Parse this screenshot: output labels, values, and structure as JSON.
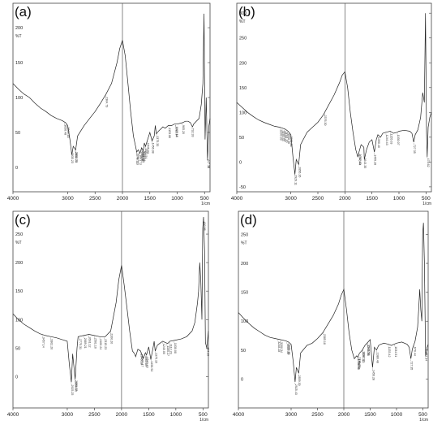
{
  "chart_data": [
    {
      "type": "line",
      "panel_label": "(a)",
      "ylabel": "%T",
      "xlabel": "1/cm",
      "xlim": [
        4000,
        400
      ],
      "ylim": [
        -35,
        235
      ],
      "xticks": [
        4000,
        3000,
        2500,
        2000,
        1500,
        1000,
        500
      ],
      "yticks": [
        0,
        50,
        100,
        150,
        200
      ],
      "series": [
        {
          "x": [
            4000,
            3900,
            3800,
            3700,
            3600,
            3500,
            3400,
            3300,
            3200,
            3100,
            3040,
            3000,
            2960,
            2925,
            2900,
            2855,
            2820,
            2700,
            2600,
            2500,
            2400,
            2300,
            2200,
            2100,
            2050,
            2000,
            1950,
            1900,
            1850,
            1800,
            1760,
            1740,
            1710,
            1680,
            1650,
            1620,
            1600,
            1580,
            1540,
            1500,
            1460,
            1420,
            1400,
            1380,
            1340,
            1300,
            1260,
            1220,
            1160,
            1100,
            1050,
            1000,
            900,
            850,
            800,
            760,
            720,
            700,
            650,
            600,
            560,
            530,
            510,
            490,
            470,
            446,
            420,
            400
          ],
          "y": [
            120,
            112,
            105,
            100,
            92,
            85,
            80,
            74,
            70,
            67,
            64,
            60,
            40,
            18,
            30,
            25,
            45,
            60,
            70,
            80,
            92,
            105,
            120,
            150,
            170,
            182,
            160,
            120,
            80,
            45,
            30,
            22,
            25,
            20,
            28,
            24,
            35,
            30,
            40,
            50,
            38,
            45,
            60,
            48,
            52,
            55,
            58,
            56,
            60,
            60,
            62,
            62,
            64,
            66,
            66,
            64,
            58,
            62,
            66,
            70,
            90,
            120,
            220,
            40,
            100,
            10,
            60,
            70
          ]
        }
      ],
      "peak_labels": [
        "3056.48",
        "3009.48",
        "2935.23",
        "2862.76",
        "2856.23",
        "2304.73",
        "1744.11",
        "1737.13",
        "1691.72",
        "1658.67",
        "1646.28",
        "1633.23",
        "1613.44",
        "1583.54",
        "1545.93",
        "1456.38",
        "1375.33",
        "1153.86",
        "1025.15",
        "1032.94",
        "905.20",
        "732.33",
        "447.35"
      ]
    },
    {
      "type": "line",
      "panel_label": "(b)",
      "ylabel": "%T",
      "xlabel": "1/cm",
      "xlim": [
        4000,
        400
      ],
      "ylim": [
        -60,
        320
      ],
      "xticks": [
        4000,
        3000,
        2500,
        2000,
        1500,
        1000,
        500
      ],
      "yticks": [
        -50,
        0,
        50,
        100,
        150,
        200,
        250,
        300
      ],
      "series": [
        {
          "x": [
            4000,
            3900,
            3800,
            3700,
            3600,
            3500,
            3400,
            3300,
            3200,
            3100,
            3050,
            3000,
            2960,
            2925,
            2900,
            2855,
            2820,
            2700,
            2600,
            2500,
            2400,
            2300,
            2200,
            2100,
            2050,
            2000,
            1950,
            1900,
            1850,
            1800,
            1760,
            1740,
            1700,
            1650,
            1640,
            1600,
            1550,
            1500,
            1455,
            1420,
            1390,
            1340,
            1300,
            1240,
            1160,
            1100,
            1030,
            1000,
            900,
            800,
            760,
            727,
            700,
            650,
            600,
            560,
            530,
            510,
            490,
            478,
            460,
            430,
            400
          ],
          "y": [
            120,
            110,
            100,
            92,
            85,
            80,
            76,
            72,
            70,
            66,
            62,
            55,
            10,
            -25,
            5,
            -5,
            35,
            60,
            70,
            80,
            95,
            115,
            135,
            160,
            175,
            182,
            150,
            100,
            60,
            25,
            10,
            20,
            35,
            30,
            5,
            25,
            40,
            45,
            20,
            45,
            55,
            50,
            58,
            60,
            62,
            58,
            60,
            62,
            64,
            62,
            58,
            40,
            55,
            65,
            90,
            140,
            120,
            300,
            60,
            10,
            70,
            90,
            100
          ]
        }
      ],
      "peak_labels": [
        "3200.33",
        "3160.33",
        "3120.22",
        "3091.20",
        "3058.36",
        "3011.88",
        "2929.11",
        "2856.26",
        "2376.30",
        "1740.44",
        "1737.63",
        "1643.35",
        "1455.28",
        "1390.40",
        "1240.43",
        "1155.03",
        "1030.07",
        "727.35",
        "478.62"
      ]
    },
    {
      "type": "line",
      "panel_label": "(c)",
      "ylabel": "%T",
      "xlabel": "1/cm",
      "xlim": [
        4000,
        400
      ],
      "ylim": [
        -55,
        290
      ],
      "xticks": [
        4000,
        3000,
        2500,
        2000,
        1500,
        1000,
        500
      ],
      "yticks": [
        0,
        50,
        100,
        150,
        200,
        250
      ],
      "series": [
        {
          "x": [
            4000,
            3900,
            3800,
            3700,
            3600,
            3500,
            3400,
            3300,
            3200,
            3100,
            3000,
            2960,
            2925,
            2900,
            2855,
            2820,
            2800,
            2700,
            2600,
            2500,
            2400,
            2300,
            2200,
            2100,
            2050,
            2000,
            1950,
            1900,
            1850,
            1800,
            1760,
            1740,
            1700,
            1650,
            1600,
            1560,
            1540,
            1500,
            1460,
            1420,
            1400,
            1380,
            1340,
            1300,
            1240,
            1200,
            1150,
            1110,
            1000,
            900,
            800,
            700,
            650,
            600,
            580,
            560,
            540,
            520,
            505,
            490,
            470,
            455,
            430,
            410,
            400
          ],
          "y": [
            110,
            100,
            92,
            86,
            80,
            75,
            72,
            70,
            68,
            65,
            62,
            20,
            -10,
            40,
            -5,
            50,
            70,
            72,
            74,
            72,
            70,
            70,
            80,
            130,
            170,
            195,
            160,
            120,
            80,
            45,
            40,
            35,
            48,
            45,
            32,
            42,
            38,
            52,
            30,
            50,
            62,
            45,
            55,
            58,
            62,
            60,
            58,
            62,
            64,
            66,
            70,
            80,
            95,
            130,
            150,
            200,
            170,
            100,
            260,
            280,
            220,
            60,
            50,
            70,
            80
          ]
        }
      ],
      "peak_labels": [
        "3457.14",
        "3302.20",
        "2925.25",
        "2856.36",
        "2853.37",
        "2775.31",
        "2689.21",
        "2601.12",
        "2501.10",
        "2400.24",
        "2315.23",
        "2200.20",
        "1645.28",
        "1630.17",
        "1565.89",
        "1540.43",
        "1456.92",
        "1375.15",
        "1240.00",
        "1165.27",
        "1112.23",
        "1030.08",
        "492.86",
        "424.19"
      ]
    },
    {
      "type": "line",
      "panel_label": "(d)",
      "ylabel": "%T",
      "xlabel": "1/cm",
      "xlim": [
        4000,
        400
      ],
      "ylim": [
        -50,
        290
      ],
      "xticks": [
        4000,
        3000,
        2500,
        2000,
        1500,
        1000,
        500
      ],
      "yticks": [
        0,
        50,
        100,
        150,
        200,
        250
      ],
      "series": [
        {
          "x": [
            4000,
            3900,
            3800,
            3700,
            3600,
            3500,
            3400,
            3300,
            3200,
            3100,
            3050,
            3000,
            2960,
            2925,
            2900,
            2855,
            2820,
            2700,
            2600,
            2500,
            2400,
            2300,
            2200,
            2100,
            2050,
            2000,
            1950,
            1900,
            1850,
            1800,
            1760,
            1740,
            1700,
            1650,
            1600,
            1560,
            1500,
            1456,
            1420,
            1380,
            1340,
            1300,
            1240,
            1150,
            1100,
            1000,
            900,
            800,
            760,
            727,
            700,
            650,
            600,
            580,
            560,
            540,
            520,
            505,
            490,
            470,
            450,
            420,
            400
          ],
          "y": [
            115,
            105,
            96,
            88,
            82,
            76,
            72,
            70,
            68,
            66,
            64,
            60,
            30,
            -5,
            20,
            10,
            45,
            58,
            62,
            70,
            80,
            95,
            110,
            130,
            145,
            155,
            120,
            80,
            50,
            35,
            40,
            38,
            45,
            50,
            58,
            62,
            68,
            20,
            55,
            50,
            58,
            60,
            62,
            60,
            58,
            62,
            64,
            60,
            55,
            35,
            52,
            65,
            90,
            120,
            155,
            120,
            100,
            250,
            270,
            200,
            40,
            55,
            60
          ]
        }
      ],
      "peak_labels": [
        "3248.28",
        "3200.34",
        "3080.36",
        "3051.81",
        "2925.43",
        "2859.30",
        "2385.18",
        "1736.48",
        "1730.60",
        "1716.32",
        "1647.13",
        "1636.12",
        "1555.08",
        "1543.56",
        "1456.28",
        "1380.48",
        "1153.42",
        "1034.51",
        "727.35",
        "670.44",
        "451.34"
      ]
    }
  ]
}
